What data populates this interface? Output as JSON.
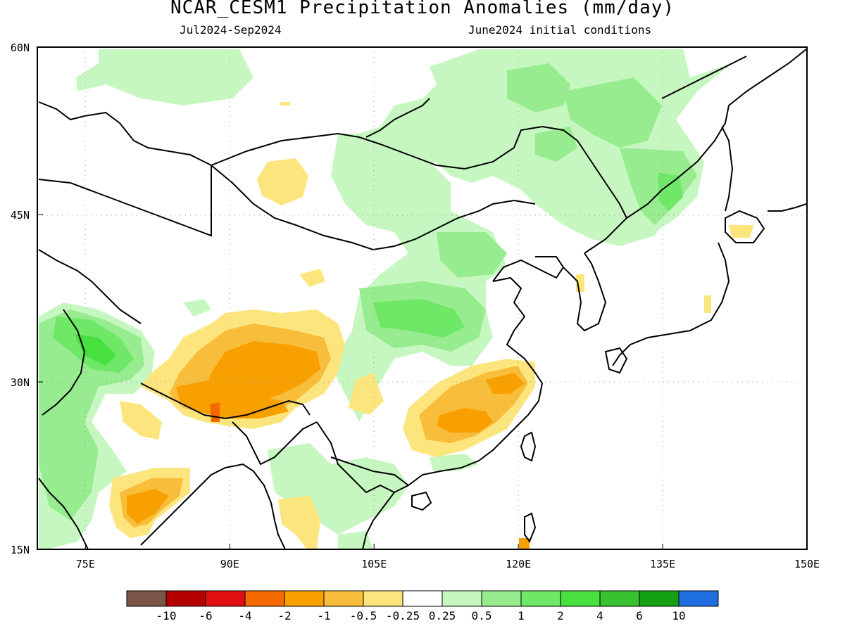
{
  "header": {
    "title": "NCAR_CESM1 Precipitation Anomalies (mm/day)",
    "period": "Jul2024-Sep2024",
    "init": "June2024 initial conditions"
  },
  "map": {
    "lon_range": [
      70,
      150
    ],
    "lat_range": [
      15,
      60
    ],
    "lat_ticks": [
      "60N",
      "45N",
      "30N",
      "15N"
    ],
    "lon_ticks": [
      "75E",
      "90E",
      "105E",
      "120E",
      "135E",
      "150E"
    ],
    "grid": true,
    "grid_style": "dotted"
  },
  "colorbar": {
    "colors": [
      "#7a5548",
      "#b40000",
      "#e01010",
      "#f56a00",
      "#f7a000",
      "#f9bd3c",
      "#fce57d",
      "#ffffff",
      "#c7f7c0",
      "#96ec8e",
      "#6ee866",
      "#48e03e",
      "#36c231",
      "#13a113",
      "#1e6ee0"
    ],
    "labels": [
      "-10",
      "-6",
      "-4",
      "-2",
      "-1",
      "-0.5",
      "-0.25",
      "0.25",
      "0.5",
      "1",
      "2",
      "4",
      "6",
      "10"
    ]
  }
}
